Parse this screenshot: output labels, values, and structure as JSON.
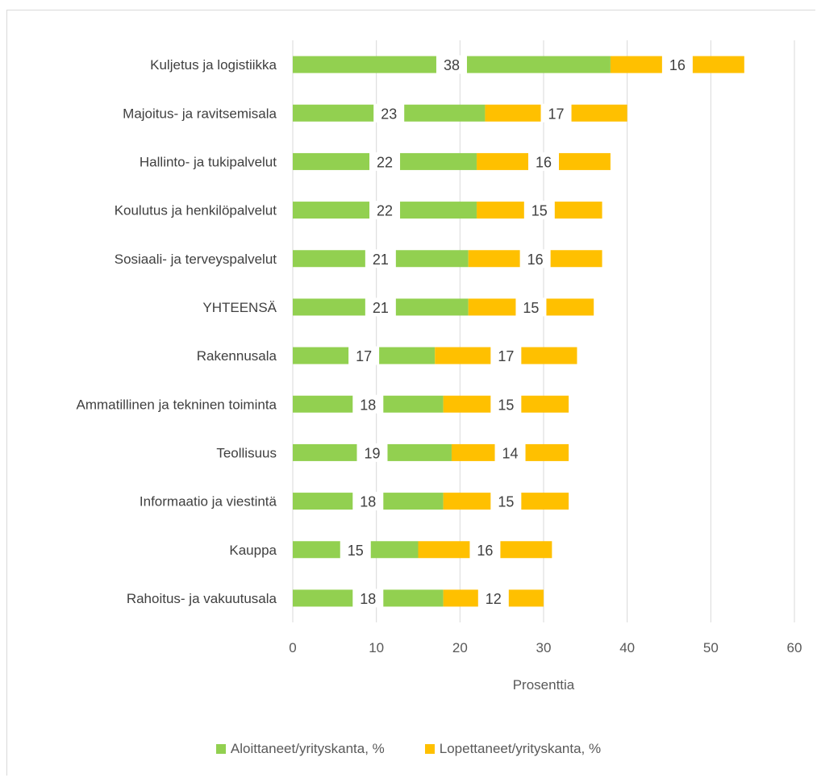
{
  "chart_data": {
    "type": "bar",
    "orientation": "horizontal",
    "stacked": true,
    "categories": [
      "Kuljetus ja logistiikka",
      "Majoitus- ja ravitsemisala",
      "Hallinto- ja tukipalvelut",
      "Koulutus ja henkilöpalvelut",
      "Sosiaali- ja terveyspalvelut",
      "YHTEENSÄ",
      "Rakennusala",
      "Ammatillinen ja tekninen toiminta",
      "Teollisuus",
      "Informaatio ja viestintä",
      "Kauppa",
      "Rahoitus- ja vakuutusala"
    ],
    "series": [
      {
        "name": "Aloittaneet/yrityskanta, %",
        "color": "#92d050",
        "values": [
          38,
          23,
          22,
          22,
          21,
          21,
          17,
          18,
          19,
          18,
          15,
          18
        ]
      },
      {
        "name": "Lopettaneet/yrityskanta, %",
        "color": "#ffc000",
        "values": [
          16,
          17,
          16,
          15,
          16,
          15,
          17,
          15,
          14,
          15,
          16,
          12
        ]
      }
    ],
    "xlabel": "Prosenttia",
    "xlim": [
      0,
      60
    ],
    "xticks": [
      0,
      10,
      20,
      30,
      40,
      50,
      60
    ],
    "grid": true,
    "legend_position": "bottom",
    "data_labels": true
  }
}
